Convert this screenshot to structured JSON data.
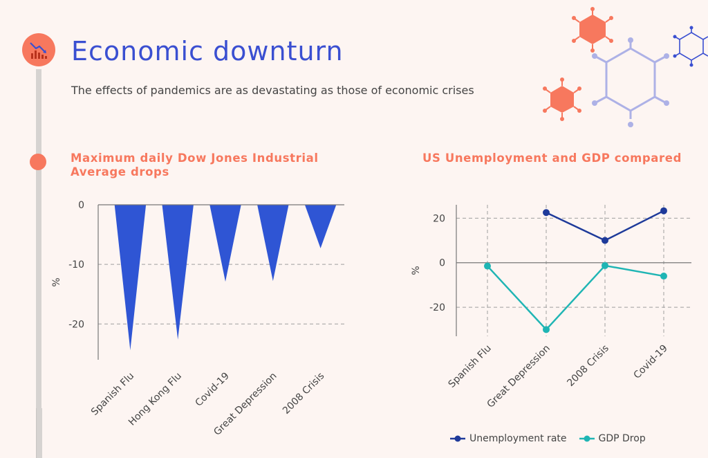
{
  "header": {
    "title": "Economic downturn",
    "subtitle": "The effects of pandemics are as devastating as those of economic crises"
  },
  "icons": {
    "title_icon": "chart-down-icon",
    "decoration": "molecule-hexagons-icon"
  },
  "colors": {
    "accent": "#f7785e",
    "bar": "#2f55d4",
    "unemployment": "#1e3a9a",
    "gdp": "#1fb5b4",
    "title": "#3a4fd1"
  },
  "chart_data": [
    {
      "type": "bar",
      "title": "Maximum daily Dow Jones Industrial Average drops",
      "categories": [
        "Spanish Flu",
        "Hong Kong Flu",
        "Covid-19",
        "Great Depression",
        "2008 Crisis"
      ],
      "values": [
        -24.4,
        -22.6,
        -12.9,
        -12.8,
        -7.3
      ],
      "ylabel": "%",
      "xlabel": "",
      "ylim": [
        -26,
        0
      ],
      "yticks": [
        0,
        -10,
        -20
      ],
      "ytick_labels": [
        "0",
        "-10",
        "-20"
      ],
      "grid": true
    },
    {
      "type": "line",
      "title": "US Unemployment and GDP compared",
      "categories": [
        "Spanish Flu",
        "Great Depression",
        "2008 Crisis",
        "Covid-19"
      ],
      "series": [
        {
          "name": "Unemployment rate",
          "values": [
            null,
            22.5,
            10,
            23.3
          ]
        },
        {
          "name": "GDP Drop",
          "values": [
            -1.5,
            -30,
            -1.3,
            -6
          ]
        }
      ],
      "ylabel": "%",
      "xlabel": "",
      "ylim": [
        -33,
        26
      ],
      "yticks": [
        20,
        0,
        -20
      ],
      "ytick_labels": [
        "20",
        "0",
        "-20"
      ],
      "grid": true,
      "legend": "bottom"
    }
  ]
}
